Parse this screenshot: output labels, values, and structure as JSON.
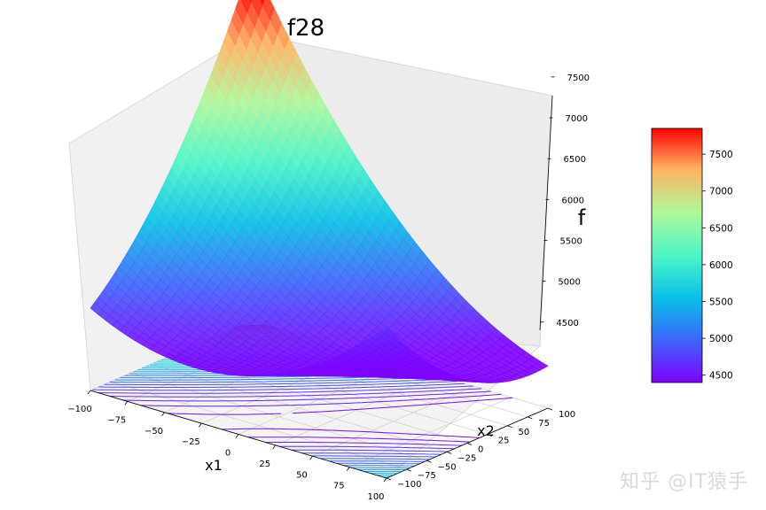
{
  "chart_data": {
    "type": "surface3d",
    "title": "f28",
    "xlabel": "x1",
    "ylabel": "x2",
    "zlabel": "f",
    "x_ticks": [
      -100,
      -75,
      -50,
      -25,
      0,
      25,
      50,
      75,
      100
    ],
    "y_ticks": [
      -100,
      -75,
      -50,
      -25,
      0,
      25,
      50,
      75,
      100
    ],
    "z_ticks": [
      4500,
      5000,
      5500,
      6000,
      6500,
      7000,
      7500
    ],
    "colorbar_ticks": [
      4500,
      5000,
      5500,
      6000,
      6500,
      7000,
      7500
    ],
    "x_tick_labels": [
      "−100",
      "−75",
      "−50",
      "−25",
      "0",
      "25",
      "50",
      "75",
      "100"
    ],
    "y_tick_labels": [
      "−100",
      "−75",
      "−50",
      "−25",
      "0",
      "25",
      "50",
      "75",
      "100"
    ],
    "z_tick_labels": [
      "4500",
      "5000",
      "5500",
      "6000",
      "6500",
      "7000",
      "7500"
    ],
    "colorbar_tick_labels": [
      "4500",
      "5000",
      "5500",
      "6000",
      "6500",
      "7000",
      "7500"
    ],
    "xlim": [
      -100,
      100
    ],
    "ylim": [
      -100,
      100
    ],
    "zlim": [
      4400,
      7850
    ],
    "colormap": "rainbow",
    "minimum": {
      "x1": 25,
      "x2": 10,
      "f": 4400
    },
    "corner_values": [
      {
        "x1": -100,
        "x2": -100,
        "f": 5550
      },
      {
        "x1": 100,
        "x2": -100,
        "f": 4700
      },
      {
        "x1": -100,
        "x2": 100,
        "f": 7830
      },
      {
        "x1": 100,
        "x2": 100,
        "f": 5150
      }
    ],
    "contour_projection": "offset plane below surface",
    "grid": true
  },
  "watermark": "知乎 @IT猿手"
}
